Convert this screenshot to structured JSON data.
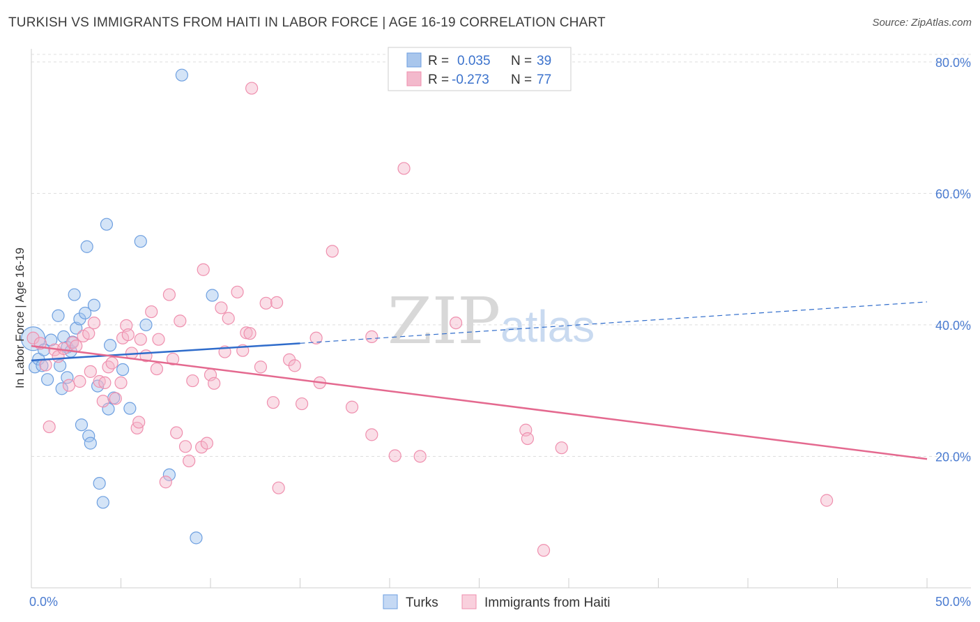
{
  "header": {
    "title": "TURKISH VS IMMIGRANTS FROM HAITI IN LABOR FORCE | AGE 16-19 CORRELATION CHART",
    "source": "Source: ZipAtlas.com"
  },
  "watermark": {
    "part1": "ZIP",
    "part2": "atlas"
  },
  "legend_box": {
    "rows": [
      {
        "r_label": "R =",
        "r_value": "0.035",
        "n_label": "N =",
        "n_value": "39",
        "color": "#a9c6ec"
      },
      {
        "r_label": "R =",
        "r_value": "-0.273",
        "n_label": "N =",
        "n_value": "77",
        "color": "#f3b9cc"
      }
    ]
  },
  "bottom_legend": [
    "Turks",
    "Immigrants from Haiti"
  ],
  "chart_data": {
    "type": "scatter",
    "ylabel": "In Labor Force | Age 16-19",
    "xlim": [
      0,
      50
    ],
    "ylim": [
      0,
      82
    ],
    "x_tick_labels": [
      "0.0%",
      "50.0%"
    ],
    "y_ticks": [
      20,
      40,
      60,
      80
    ],
    "y_tick_labels": [
      "20.0%",
      "40.0%",
      "60.0%",
      "80.0%"
    ],
    "grid": true,
    "colors": {
      "turks": "#6d9fe0",
      "haiti": "#ef8fae",
      "turks_line": "#2f6ccb",
      "haiti_line": "#e4698f"
    },
    "series": [
      {
        "name": "Turks",
        "r": 0.035,
        "n": 39,
        "trend": {
          "x": [
            0,
            15
          ],
          "y": [
            34.6,
            37.2
          ],
          "dashed_to": {
            "x": 50,
            "y": 43.5
          }
        },
        "points": [
          [
            0.1,
            37.9
          ],
          [
            0.2,
            33.6
          ],
          [
            0.4,
            34.8
          ],
          [
            0.6,
            33.8
          ],
          [
            0.7,
            36.2
          ],
          [
            0.9,
            31.7
          ],
          [
            1.1,
            37.7
          ],
          [
            1.5,
            41.4
          ],
          [
            1.6,
            33.8
          ],
          [
            1.7,
            30.3
          ],
          [
            1.8,
            38.2
          ],
          [
            2.0,
            32.0
          ],
          [
            2.0,
            36.6
          ],
          [
            2.2,
            36.0
          ],
          [
            2.3,
            37.4
          ],
          [
            2.4,
            44.6
          ],
          [
            2.5,
            39.5
          ],
          [
            2.7,
            40.9
          ],
          [
            2.8,
            24.8
          ],
          [
            3.0,
            41.8
          ],
          [
            3.1,
            51.9
          ],
          [
            3.2,
            23.1
          ],
          [
            3.3,
            22.0
          ],
          [
            3.5,
            43.0
          ],
          [
            3.7,
            30.7
          ],
          [
            3.8,
            15.9
          ],
          [
            4.0,
            13.0
          ],
          [
            4.2,
            55.3
          ],
          [
            4.3,
            27.2
          ],
          [
            4.4,
            36.9
          ],
          [
            4.6,
            28.9
          ],
          [
            5.1,
            33.2
          ],
          [
            5.5,
            27.3
          ],
          [
            6.1,
            52.7
          ],
          [
            6.4,
            40.0
          ],
          [
            7.7,
            17.2
          ],
          [
            8.4,
            78.0
          ],
          [
            9.2,
            7.6
          ],
          [
            10.1,
            44.5
          ]
        ]
      },
      {
        "name": "Immigrants from Haiti",
        "r": -0.273,
        "n": 77,
        "trend": {
          "x": [
            0,
            50
          ],
          "y": [
            36.8,
            19.6
          ]
        },
        "points": [
          [
            0.1,
            38.0
          ],
          [
            0.5,
            37.2
          ],
          [
            0.8,
            33.9
          ],
          [
            1.0,
            24.5
          ],
          [
            1.3,
            36.2
          ],
          [
            1.5,
            35.2
          ],
          [
            1.8,
            36.4
          ],
          [
            2.1,
            30.8
          ],
          [
            2.3,
            37.3
          ],
          [
            2.5,
            36.8
          ],
          [
            2.7,
            31.4
          ],
          [
            2.9,
            38.3
          ],
          [
            3.2,
            38.7
          ],
          [
            3.3,
            32.9
          ],
          [
            3.5,
            40.3
          ],
          [
            3.8,
            31.4
          ],
          [
            4.0,
            28.4
          ],
          [
            4.1,
            31.2
          ],
          [
            4.3,
            33.6
          ],
          [
            4.5,
            34.2
          ],
          [
            4.7,
            28.8
          ],
          [
            5.0,
            31.2
          ],
          [
            5.1,
            38.0
          ],
          [
            5.3,
            39.9
          ],
          [
            5.4,
            38.5
          ],
          [
            5.6,
            35.7
          ],
          [
            5.9,
            24.3
          ],
          [
            6.0,
            25.2
          ],
          [
            6.1,
            37.8
          ],
          [
            6.4,
            35.3
          ],
          [
            6.7,
            42.0
          ],
          [
            7.0,
            33.3
          ],
          [
            7.1,
            37.8
          ],
          [
            7.5,
            16.1
          ],
          [
            7.7,
            44.6
          ],
          [
            7.9,
            34.8
          ],
          [
            8.1,
            23.6
          ],
          [
            8.3,
            40.6
          ],
          [
            8.6,
            21.5
          ],
          [
            8.8,
            19.3
          ],
          [
            9.0,
            31.5
          ],
          [
            9.5,
            21.4
          ],
          [
            9.6,
            48.4
          ],
          [
            9.8,
            22.0
          ],
          [
            10.0,
            32.4
          ],
          [
            10.2,
            31.1
          ],
          [
            10.6,
            42.6
          ],
          [
            10.8,
            35.9
          ],
          [
            11.0,
            41.0
          ],
          [
            11.5,
            45.0
          ],
          [
            11.8,
            36.1
          ],
          [
            12.0,
            38.8
          ],
          [
            12.2,
            38.7
          ],
          [
            12.3,
            76.0
          ],
          [
            12.8,
            33.6
          ],
          [
            13.1,
            43.3
          ],
          [
            13.5,
            28.2
          ],
          [
            13.7,
            43.4
          ],
          [
            13.8,
            15.2
          ],
          [
            14.4,
            34.7
          ],
          [
            14.7,
            33.8
          ],
          [
            15.1,
            28.0
          ],
          [
            15.9,
            38.0
          ],
          [
            16.1,
            31.2
          ],
          [
            16.8,
            51.2
          ],
          [
            17.9,
            27.5
          ],
          [
            19.0,
            38.2
          ],
          [
            19.0,
            23.3
          ],
          [
            20.3,
            20.1
          ],
          [
            20.8,
            63.8
          ],
          [
            21.7,
            20.0
          ],
          [
            23.7,
            40.3
          ],
          [
            27.6,
            24.0
          ],
          [
            27.7,
            22.7
          ],
          [
            28.6,
            5.7
          ],
          [
            29.6,
            21.3
          ],
          [
            44.4,
            13.3
          ]
        ]
      }
    ]
  }
}
